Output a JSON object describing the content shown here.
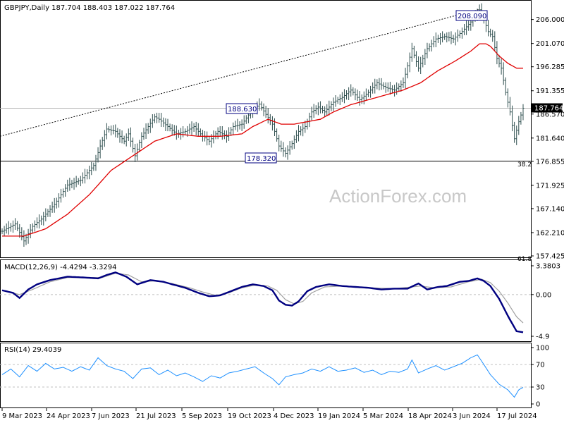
{
  "chart_data": [
    {
      "type": "line",
      "name": "price-panel",
      "header": "GBPJPY,Daily  187.704 188.403 187.022 187.764",
      "watermark": "ActionForex.com",
      "ylim": [
        157.425,
        210.0
      ],
      "y_ticks": [
        "206.000",
        "201.070",
        "196.285",
        "191.355",
        "186.570",
        "181.640",
        "176.855",
        "171.925",
        "167.140",
        "162.210",
        "157.425"
      ],
      "last_price": "187.764",
      "annotations": {
        "high": "208.090",
        "mid_high": "188.630",
        "mid_low": "178.320",
        "fib_382": "38.2",
        "fib_618": "61.8"
      },
      "fib_382_value": 176.9,
      "trendline": {
        "start": 182.0,
        "end": 208.1
      },
      "x_labels": [
        "9 Mar 2023",
        "24 Apr 2023",
        "7 Jun 2023",
        "21 Jul 2023",
        "5 Sep 2023",
        "19 Oct 2023",
        "4 Dec 2023",
        "19 Jan 2024",
        "5 Mar 2024",
        "18 Apr 2024",
        "3 Jun 2024",
        "17 Jul 2024"
      ],
      "price_path": [
        [
          0,
          162.5
        ],
        [
          6,
          164
        ],
        [
          10,
          160.5
        ],
        [
          14,
          163.5
        ],
        [
          18,
          165
        ],
        [
          24,
          168
        ],
        [
          30,
          172
        ],
        [
          36,
          173
        ],
        [
          42,
          176
        ],
        [
          45,
          180
        ],
        [
          48,
          183.5
        ],
        [
          52,
          183
        ],
        [
          56,
          181
        ],
        [
          58,
          182.5
        ],
        [
          61,
          178
        ],
        [
          64,
          182
        ],
        [
          67,
          184
        ],
        [
          70,
          186
        ],
        [
          72,
          185.5
        ],
        [
          76,
          184
        ],
        [
          80,
          182.5
        ],
        [
          84,
          183
        ],
        [
          88,
          184
        ],
        [
          92,
          182
        ],
        [
          95,
          181
        ],
        [
          99,
          183
        ],
        [
          103,
          182
        ],
        [
          106,
          184
        ],
        [
          110,
          184.5
        ],
        [
          114,
          187
        ],
        [
          118,
          188.6
        ],
        [
          121,
          186.5
        ],
        [
          124,
          184.5
        ],
        [
          127,
          180
        ],
        [
          130,
          178.5
        ],
        [
          133,
          180.5
        ],
        [
          136,
          183
        ],
        [
          139,
          184
        ],
        [
          142,
          187
        ],
        [
          145,
          188
        ],
        [
          148,
          187
        ],
        [
          152,
          189
        ],
        [
          156,
          190
        ],
        [
          160,
          191.5
        ],
        [
          164,
          189.5
        ],
        [
          168,
          191
        ],
        [
          172,
          193
        ],
        [
          176,
          192
        ],
        [
          180,
          191.5
        ],
        [
          184,
          193
        ],
        [
          188,
          200
        ],
        [
          191,
          196
        ],
        [
          195,
          200
        ],
        [
          199,
          202
        ],
        [
          203,
          202.5
        ],
        [
          207,
          202
        ],
        [
          211,
          203.5
        ],
        [
          215,
          205.5
        ],
        [
          219,
          208
        ],
        [
          221,
          206
        ],
        [
          223,
          203.5
        ],
        [
          225,
          202.5
        ],
        [
          227,
          198
        ],
        [
          229,
          196
        ],
        [
          231,
          191
        ],
        [
          233,
          187
        ],
        [
          235,
          181.5
        ],
        [
          237,
          185
        ],
        [
          239,
          187.764
        ]
      ],
      "ma_path": [
        [
          0,
          161.5
        ],
        [
          10,
          161.5
        ],
        [
          20,
          163
        ],
        [
          30,
          166
        ],
        [
          40,
          170
        ],
        [
          50,
          175
        ],
        [
          60,
          178
        ],
        [
          70,
          181
        ],
        [
          80,
          182.5
        ],
        [
          90,
          182
        ],
        [
          100,
          182
        ],
        [
          110,
          182.5
        ],
        [
          115,
          184
        ],
        [
          122,
          185.5
        ],
        [
          128,
          184.5
        ],
        [
          134,
          184.5
        ],
        [
          140,
          185
        ],
        [
          146,
          185.5
        ],
        [
          152,
          187
        ],
        [
          160,
          188.5
        ],
        [
          168,
          189.5
        ],
        [
          176,
          190.5
        ],
        [
          184,
          191.5
        ],
        [
          192,
          193
        ],
        [
          200,
          195.5
        ],
        [
          208,
          197.5
        ],
        [
          215,
          199.5
        ],
        [
          219,
          201
        ],
        [
          222,
          201
        ],
        [
          224,
          200.5
        ],
        [
          228,
          198.5
        ],
        [
          232,
          197
        ],
        [
          236,
          196
        ],
        [
          239,
          196
        ]
      ]
    },
    {
      "type": "line",
      "name": "macd-panel",
      "header": "MACD(12,26,9) -4.4294 -3.3294",
      "ylim": [
        -4.9,
        3.3803
      ],
      "y_ticks": [
        "3.3803",
        "0.00",
        "-4.9"
      ],
      "macd_path": [
        [
          0,
          0.5
        ],
        [
          5,
          0.2
        ],
        [
          8,
          -0.4
        ],
        [
          12,
          0.6
        ],
        [
          16,
          1.2
        ],
        [
          22,
          1.7
        ],
        [
          30,
          2.1
        ],
        [
          38,
          2.0
        ],
        [
          44,
          1.9
        ],
        [
          48,
          2.3
        ],
        [
          52,
          2.6
        ],
        [
          57,
          2.1
        ],
        [
          62,
          1.2
        ],
        [
          68,
          1.7
        ],
        [
          74,
          1.5
        ],
        [
          78,
          1.2
        ],
        [
          84,
          0.8
        ],
        [
          90,
          0.2
        ],
        [
          95,
          -0.2
        ],
        [
          100,
          -0.1
        ],
        [
          105,
          0.4
        ],
        [
          110,
          0.9
        ],
        [
          115,
          1.2
        ],
        [
          120,
          1.0
        ],
        [
          124,
          0.5
        ],
        [
          127,
          -0.7
        ],
        [
          130,
          -1.2
        ],
        [
          133,
          -1.3
        ],
        [
          136,
          -0.8
        ],
        [
          140,
          0.4
        ],
        [
          144,
          0.9
        ],
        [
          150,
          1.2
        ],
        [
          156,
          1.0
        ],
        [
          162,
          0.9
        ],
        [
          168,
          0.8
        ],
        [
          174,
          0.6
        ],
        [
          180,
          0.7
        ],
        [
          186,
          0.7
        ],
        [
          191,
          1.3
        ],
        [
          195,
          0.6
        ],
        [
          200,
          0.9
        ],
        [
          204,
          1.0
        ],
        [
          210,
          1.5
        ],
        [
          214,
          1.6
        ],
        [
          218,
          1.9
        ],
        [
          221,
          1.6
        ],
        [
          224,
          1.0
        ],
        [
          228,
          -0.5
        ],
        [
          232,
          -2.5
        ],
        [
          236,
          -4.3
        ],
        [
          239,
          -4.43
        ]
      ],
      "signal_path": [
        [
          0,
          0.5
        ],
        [
          8,
          0.0
        ],
        [
          14,
          0.6
        ],
        [
          22,
          1.5
        ],
        [
          30,
          2.0
        ],
        [
          38,
          2.0
        ],
        [
          46,
          2.0
        ],
        [
          52,
          2.5
        ],
        [
          58,
          2.3
        ],
        [
          64,
          1.5
        ],
        [
          70,
          1.6
        ],
        [
          78,
          1.3
        ],
        [
          86,
          0.8
        ],
        [
          92,
          0.3
        ],
        [
          98,
          -0.1
        ],
        [
          104,
          0.2
        ],
        [
          110,
          0.8
        ],
        [
          116,
          1.1
        ],
        [
          122,
          1.0
        ],
        [
          126,
          0.5
        ],
        [
          130,
          -0.6
        ],
        [
          134,
          -1.1
        ],
        [
          138,
          -0.8
        ],
        [
          142,
          0.2
        ],
        [
          148,
          0.9
        ],
        [
          156,
          1.0
        ],
        [
          168,
          0.8
        ],
        [
          180,
          0.7
        ],
        [
          192,
          1.0
        ],
        [
          198,
          0.8
        ],
        [
          206,
          0.9
        ],
        [
          214,
          1.5
        ],
        [
          220,
          1.8
        ],
        [
          224,
          1.4
        ],
        [
          228,
          0.4
        ],
        [
          232,
          -1.0
        ],
        [
          236,
          -2.6
        ],
        [
          239,
          -3.33
        ]
      ]
    },
    {
      "type": "line",
      "name": "rsi-panel",
      "header": "RSI(14) 29.4039",
      "ylim": [
        0,
        100
      ],
      "y_ticks": [
        "100",
        "70",
        "30",
        "0"
      ],
      "levels": [
        70,
        30
      ],
      "rsi_path": [
        [
          0,
          52
        ],
        [
          4,
          62
        ],
        [
          8,
          48
        ],
        [
          12,
          68
        ],
        [
          16,
          58
        ],
        [
          20,
          72
        ],
        [
          24,
          62
        ],
        [
          28,
          65
        ],
        [
          32,
          58
        ],
        [
          36,
          66
        ],
        [
          40,
          60
        ],
        [
          44,
          82
        ],
        [
          48,
          68
        ],
        [
          52,
          62
        ],
        [
          56,
          58
        ],
        [
          60,
          45
        ],
        [
          64,
          62
        ],
        [
          68,
          64
        ],
        [
          72,
          52
        ],
        [
          76,
          60
        ],
        [
          80,
          50
        ],
        [
          84,
          55
        ],
        [
          88,
          48
        ],
        [
          92,
          40
        ],
        [
          96,
          50
        ],
        [
          100,
          46
        ],
        [
          104,
          55
        ],
        [
          108,
          58
        ],
        [
          112,
          62
        ],
        [
          116,
          66
        ],
        [
          120,
          55
        ],
        [
          124,
          45
        ],
        [
          127,
          34
        ],
        [
          130,
          48
        ],
        [
          134,
          52
        ],
        [
          138,
          55
        ],
        [
          142,
          62
        ],
        [
          146,
          58
        ],
        [
          150,
          66
        ],
        [
          154,
          58
        ],
        [
          158,
          60
        ],
        [
          162,
          64
        ],
        [
          166,
          56
        ],
        [
          170,
          60
        ],
        [
          174,
          52
        ],
        [
          178,
          58
        ],
        [
          182,
          56
        ],
        [
          186,
          62
        ],
        [
          188,
          78
        ],
        [
          191,
          55
        ],
        [
          195,
          62
        ],
        [
          199,
          68
        ],
        [
          203,
          60
        ],
        [
          207,
          66
        ],
        [
          211,
          72
        ],
        [
          215,
          82
        ],
        [
          218,
          87
        ],
        [
          221,
          70
        ],
        [
          224,
          52
        ],
        [
          228,
          35
        ],
        [
          232,
          25
        ],
        [
          235,
          12
        ],
        [
          237,
          25
        ],
        [
          239,
          29.4
        ]
      ]
    }
  ]
}
